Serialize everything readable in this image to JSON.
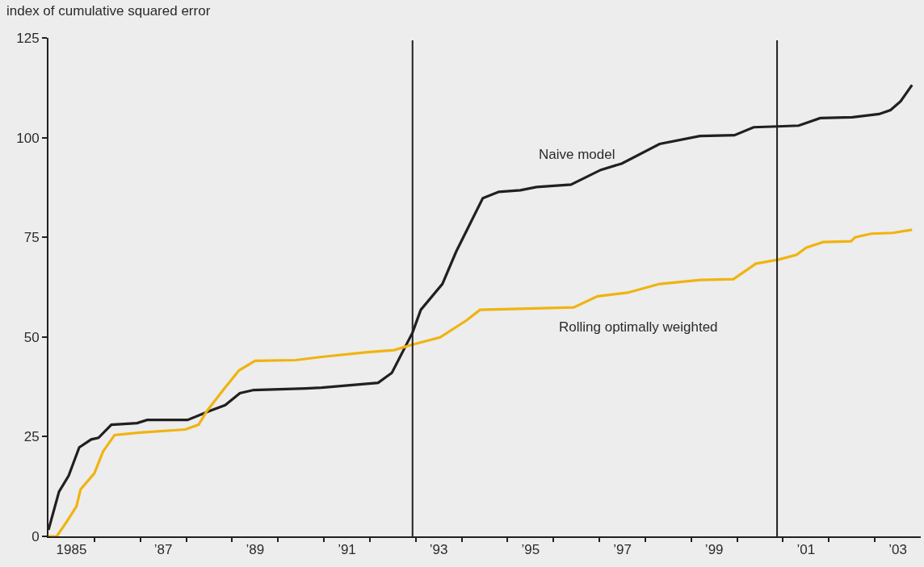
{
  "chart_data": {
    "type": "line",
    "ylabel": "index of cumulative squared error",
    "xlim": [
      1984.5,
      2003.5
    ],
    "ylim": [
      0,
      125
    ],
    "yticks": [
      0,
      25,
      50,
      75,
      100,
      125
    ],
    "xticks": [
      1985,
      {
        "value": 1987,
        "label": "’87"
      },
      {
        "value": 1989,
        "label": "’89"
      },
      {
        "value": 1991,
        "label": "’91"
      },
      {
        "value": 1993,
        "label": "’93"
      },
      {
        "value": 1995,
        "label": "’95"
      },
      {
        "value": 1997,
        "label": "’97"
      },
      {
        "value": 1999,
        "label": "’99"
      },
      {
        "value": 2001,
        "label": "’01"
      },
      {
        "value": 2003,
        "label": "’03"
      },
      {
        "value": 1985.5,
        "label": null
      },
      {
        "value": 1986.5,
        "label": null
      },
      {
        "value": 1987.5,
        "label": null
      },
      {
        "value": 1988.5,
        "label": null
      },
      {
        "value": 1989.5,
        "label": null
      },
      {
        "value": 1990.5,
        "label": null
      },
      {
        "value": 1991.5,
        "label": null
      },
      {
        "value": 1992.5,
        "label": null
      },
      {
        "value": 1993.5,
        "label": null
      },
      {
        "value": 1994.5,
        "label": null
      },
      {
        "value": 1995.5,
        "label": null
      },
      {
        "value": 1996.5,
        "label": null
      },
      {
        "value": 1997.5,
        "label": null
      },
      {
        "value": 1998.5,
        "label": null
      },
      {
        "value": 1999.5,
        "label": null
      },
      {
        "value": 2000.5,
        "label": null
      },
      {
        "value": 2001.5,
        "label": null
      },
      {
        "value": 2002.5,
        "label": null
      }
    ],
    "grid": false,
    "legend": false,
    "marker": "none",
    "line_style": "solid",
    "ref_lines": [
      {
        "axis": "x",
        "value": 1992.43,
        "color": "#231f20"
      },
      {
        "axis": "x",
        "value": 2000.37,
        "color": "#231f20"
      }
    ],
    "series": [
      {
        "name": "Naive model",
        "color": "#231f20",
        "x": [
          1984.5,
          1984.73,
          1984.94,
          1985.17,
          1985.43,
          1985.59,
          1985.87,
          1986.43,
          1986.65,
          1987.53,
          1988.0,
          1988.35,
          1988.67,
          1988.97,
          1990.1,
          1990.45,
          1991.68,
          1991.98,
          1992.43,
          1992.61,
          1993.08,
          1993.38,
          1993.61,
          1993.96,
          1994.31,
          1994.78,
          1995.13,
          1995.88,
          1996.53,
          1996.99,
          1997.81,
          1998.69,
          1999.44,
          1999.86,
          2000.38,
          2000.84,
          2001.31,
          2002.01,
          2002.59,
          2002.84,
          2003.06,
          2003.31
        ],
        "values": [
          1.6,
          11.2,
          15.2,
          22.3,
          24.3,
          24.7,
          28.0,
          28.4,
          29.2,
          29.2,
          31.4,
          32.9,
          35.9,
          36.7,
          37.1,
          37.3,
          38.5,
          41.0,
          51.1,
          56.8,
          63.3,
          71.4,
          76.7,
          84.8,
          86.4,
          86.8,
          87.6,
          88.2,
          91.9,
          93.5,
          98.4,
          100.4,
          100.6,
          102.6,
          102.8,
          103.0,
          104.9,
          105.1,
          105.9,
          106.9,
          109.1,
          113.2
        ]
      },
      {
        "name": "Rolling optimally weighted",
        "color": "#f0b310",
        "x": [
          1984.5,
          1984.68,
          1984.9,
          1985.11,
          1985.2,
          1985.5,
          1985.69,
          1985.94,
          1986.48,
          1987.48,
          1987.77,
          1987.95,
          1988.32,
          1988.65,
          1989.0,
          1989.88,
          1990.45,
          1991.45,
          1992.03,
          1992.43,
          1993.03,
          1993.61,
          1993.9,
          1995.94,
          1996.46,
          1997.11,
          1997.81,
          1998.69,
          1999.42,
          1999.91,
          2000.4,
          2000.79,
          2001.01,
          2001.37,
          2001.98,
          2002.07,
          2002.42,
          2002.89,
          2003.31
        ],
        "values": [
          0,
          0,
          3.7,
          7.5,
          11.8,
          15.8,
          21.3,
          25.4,
          26.0,
          26.8,
          28.0,
          31.4,
          36.9,
          41.6,
          44.0,
          44.2,
          45.0,
          46.2,
          46.7,
          48.1,
          49.9,
          54.2,
          56.8,
          57.4,
          60.2,
          61.1,
          63.3,
          64.3,
          64.5,
          68.4,
          69.4,
          70.6,
          72.4,
          73.8,
          74.0,
          75.0,
          75.9,
          76.1,
          76.9
        ]
      }
    ]
  }
}
